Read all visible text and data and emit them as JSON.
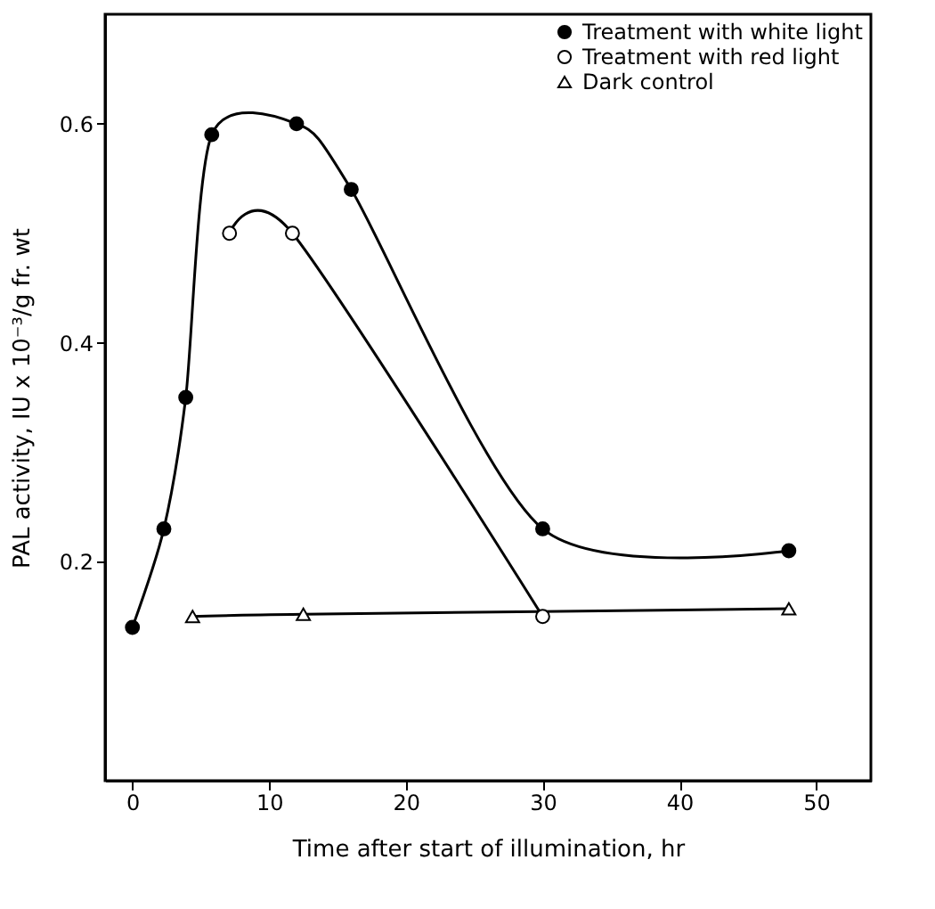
{
  "chart_data": {
    "type": "line",
    "xlabel": "Time after start of illumination,  hr",
    "ylabel": "PAL activity,  IU x 10⁻³/g fr. wt",
    "xlim": [
      -2,
      54
    ],
    "xticks": [
      0,
      10,
      20,
      30,
      40,
      50
    ],
    "ylim": [
      0,
      0.7
    ],
    "yticks": [
      0.2,
      0.4,
      0.6
    ],
    "grid": false,
    "legend": "top right",
    "series": [
      {
        "name": "Treatment with white light",
        "color": "#000000",
        "marker": "circle",
        "x": [
          0,
          2.3,
          3.9,
          5.8,
          12,
          16,
          30,
          48
        ],
        "values": [
          0.14,
          0.23,
          0.35,
          0.59,
          0.6,
          0.54,
          0.23,
          0.21
        ]
      },
      {
        "name": "Treatment with red light",
        "color": "#ffffff",
        "marker": "circle",
        "x": [
          7.1,
          11.7,
          30
        ],
        "values": [
          0.5,
          0.5,
          0.15
        ]
      },
      {
        "name": "Dark control",
        "color": "#ffffff",
        "marker": "triangle",
        "x": [
          4.4,
          12.5,
          48
        ],
        "values": [
          0.15,
          0.152,
          0.157
        ]
      }
    ]
  }
}
